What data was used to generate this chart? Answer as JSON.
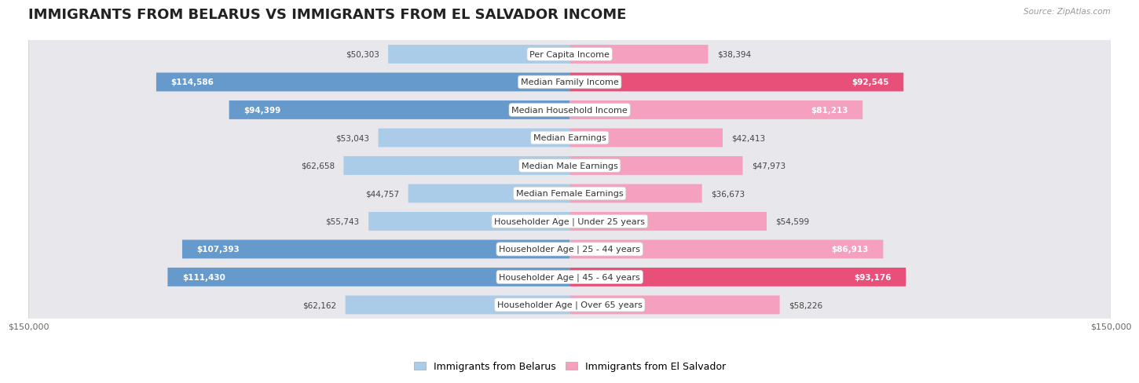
{
  "title": "IMMIGRANTS FROM BELARUS VS IMMIGRANTS FROM EL SALVADOR INCOME",
  "source": "Source: ZipAtlas.com",
  "categories": [
    "Per Capita Income",
    "Median Family Income",
    "Median Household Income",
    "Median Earnings",
    "Median Male Earnings",
    "Median Female Earnings",
    "Householder Age | Under 25 years",
    "Householder Age | 25 - 44 years",
    "Householder Age | 45 - 64 years",
    "Householder Age | Over 65 years"
  ],
  "belarus_values": [
    50303,
    114586,
    94399,
    53043,
    62658,
    44757,
    55743,
    107393,
    111430,
    62162
  ],
  "salvador_values": [
    38394,
    92545,
    81213,
    42413,
    47973,
    36673,
    54599,
    86913,
    93176,
    58226
  ],
  "belarus_color_light": "#aacce8",
  "belarus_color_dark": "#6699cc",
  "salvador_color_light": "#f4a0be",
  "salvador_color_dark": "#e8507a",
  "belarus_label": "Immigrants from Belarus",
  "salvador_label": "Immigrants from El Salvador",
  "max_value": 150000,
  "title_fontsize": 13,
  "label_fontsize": 8,
  "value_fontsize": 7.5,
  "legend_fontsize": 9,
  "axis_label_fontsize": 8,
  "row_bg": "#e8e8ec",
  "bar_bg": "#dcdce4"
}
